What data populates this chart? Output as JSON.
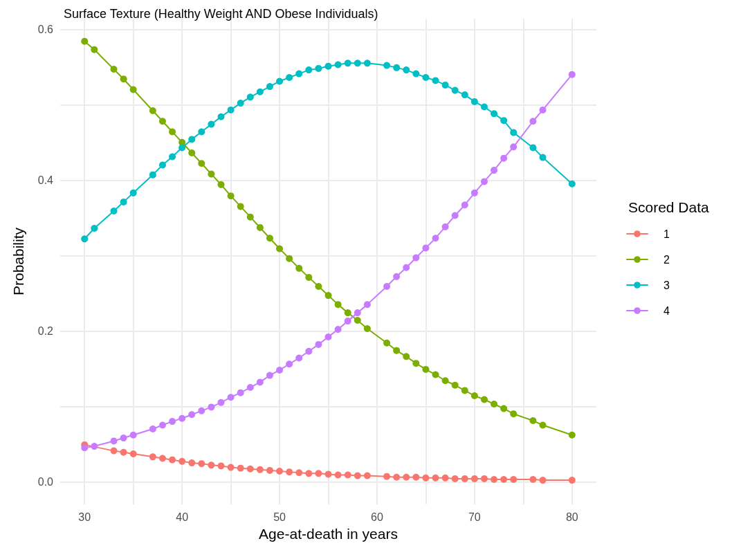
{
  "chart_data": {
    "type": "line",
    "title": "Surface Texture (Healthy Weight AND Obese Individuals)",
    "xlabel": "Age-at-death in years",
    "ylabel": "Probability",
    "legend_title": "Scored Data",
    "legend": "right",
    "marker": "circle",
    "line_style": "solid",
    "grid": true,
    "x": [
      30,
      31,
      33,
      34,
      35,
      37,
      38,
      39,
      40,
      41,
      42,
      43,
      44,
      45,
      46,
      47,
      48,
      49,
      50,
      51,
      52,
      53,
      54,
      55,
      56,
      57,
      58,
      59,
      61,
      62,
      63,
      64,
      65,
      66,
      67,
      68,
      69,
      70,
      71,
      72,
      73,
      74,
      76,
      77,
      80
    ],
    "xlim": [
      27.5,
      82.5
    ],
    "ylim": [
      -0.03,
      0.614
    ],
    "xticks": [
      30,
      {
        "value": 35,
        "label": null
      },
      40,
      {
        "value": 45,
        "label": null
      },
      50,
      {
        "value": 55,
        "label": null
      },
      60,
      {
        "value": 65,
        "label": null
      },
      70,
      {
        "value": 75,
        "label": null
      },
      80
    ],
    "yticks": [
      {
        "value": 0,
        "label": "0.0"
      },
      {
        "value": 0.1,
        "label": null
      },
      {
        "value": 0.2,
        "label": "0.2"
      },
      {
        "value": 0.3,
        "label": null
      },
      {
        "value": 0.4,
        "label": "0.4"
      },
      {
        "value": 0.5,
        "label": null
      },
      {
        "value": 0.6,
        "label": "0.6"
      }
    ],
    "series": [
      {
        "name": "1",
        "color": "#f8766d",
        "values": [
          0.049,
          null,
          0.041,
          0.039,
          0.037,
          0.033,
          0.031,
          0.029,
          0.027,
          0.025,
          0.024,
          0.022,
          0.021,
          0.019,
          0.018,
          0.017,
          0.016,
          0.015,
          0.014,
          0.013,
          0.012,
          0.011,
          0.011,
          0.01,
          0.009,
          0.009,
          0.008,
          0.008,
          0.007,
          0.006,
          0.006,
          0.006,
          0.005,
          0.005,
          0.005,
          0.004,
          0.004,
          0.004,
          0.004,
          0.003,
          0.003,
          0.003,
          0.003,
          0.002,
          0.002
        ]
      },
      {
        "name": "2",
        "color": "#7cae00",
        "values": [
          0.584,
          0.573,
          0.547,
          0.534,
          0.52,
          0.492,
          0.478,
          0.464,
          0.45,
          0.436,
          0.422,
          0.408,
          0.394,
          0.379,
          0.365,
          0.351,
          0.337,
          0.323,
          0.309,
          0.296,
          0.283,
          0.271,
          0.259,
          0.247,
          0.235,
          0.224,
          0.214,
          0.203,
          0.184,
          0.174,
          0.166,
          0.157,
          0.149,
          0.142,
          0.134,
          0.128,
          0.121,
          0.114,
          0.109,
          0.103,
          0.097,
          0.09,
          0.081,
          0.075,
          0.062
        ]
      },
      {
        "name": "3",
        "color": "#00bfc4",
        "values": [
          0.322,
          0.336,
          0.359,
          0.371,
          0.383,
          0.407,
          0.42,
          0.431,
          0.443,
          0.454,
          0.464,
          0.474,
          0.484,
          0.493,
          0.502,
          0.51,
          0.517,
          0.524,
          0.531,
          0.536,
          0.541,
          0.546,
          0.548,
          0.551,
          0.553,
          0.555,
          0.555,
          0.555,
          0.552,
          0.549,
          0.546,
          0.541,
          0.536,
          0.532,
          0.526,
          0.519,
          0.513,
          0.504,
          0.497,
          0.488,
          0.479,
          0.463,
          0.443,
          0.43,
          0.395
        ]
      },
      {
        "name": "4",
        "color": "#c77cff",
        "values": [
          0.045,
          0.047,
          0.054,
          0.058,
          0.062,
          0.07,
          0.075,
          0.08,
          0.084,
          0.089,
          0.094,
          0.099,
          0.105,
          0.112,
          0.118,
          0.125,
          0.132,
          0.141,
          0.148,
          0.156,
          0.164,
          0.173,
          0.182,
          0.192,
          0.202,
          0.213,
          0.224,
          0.235,
          0.259,
          0.272,
          0.284,
          0.297,
          0.31,
          0.323,
          0.338,
          0.353,
          0.367,
          0.383,
          0.398,
          0.413,
          0.429,
          0.444,
          0.478,
          0.493,
          0.54
        ]
      }
    ]
  }
}
